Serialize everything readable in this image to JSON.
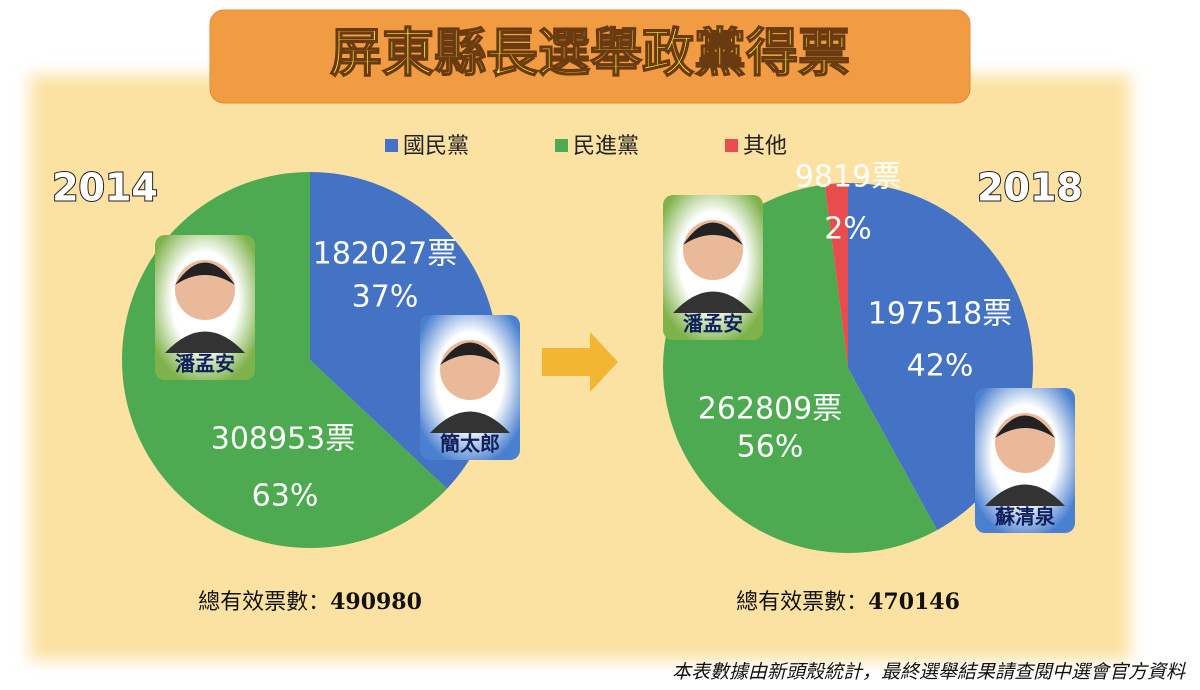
{
  "title": "屏東縣長選舉政黨得票",
  "note": "本表數據由新頭殼統計，最終選舉結果請查閱中選會官方資料",
  "total_label": "總有效票數：",
  "chart_data": [
    {
      "type": "pie",
      "title": "2014",
      "categories": [
        "國民黨",
        "民進黨"
      ],
      "colors": [
        "#4472c4",
        "#4eaa50"
      ],
      "values": [
        37,
        63
      ],
      "value_labels": [
        "37%",
        "63%"
      ],
      "vote_labels": [
        "182027票",
        "308953票"
      ],
      "candidates": [
        "簡太郎",
        "潘孟安"
      ],
      "total": 490980
    },
    {
      "type": "pie",
      "title": "2018",
      "categories": [
        "國民黨",
        "民進黨",
        "其他"
      ],
      "colors": [
        "#4472c4",
        "#4eaa50",
        "#e84c4c"
      ],
      "values": [
        42,
        56,
        2
      ],
      "value_labels": [
        "42%",
        "56%",
        "2%"
      ],
      "vote_labels": [
        "197518票",
        "262809票",
        "9819票"
      ],
      "candidates": [
        "蘇清泉",
        "潘孟安",
        null
      ],
      "total": 470146
    }
  ]
}
